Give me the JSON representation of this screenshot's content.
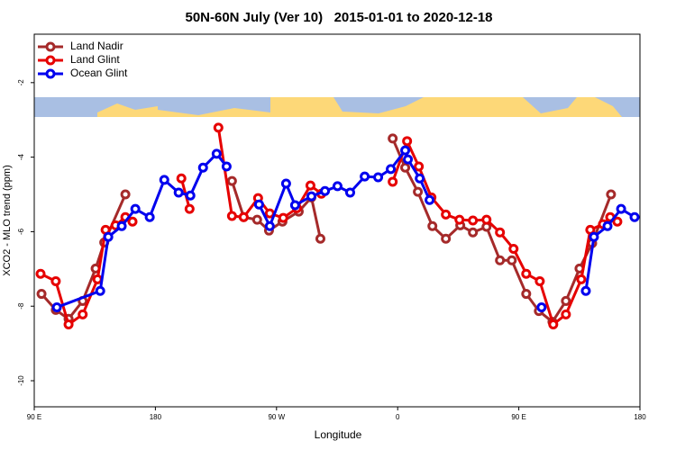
{
  "chart_data": {
    "type": "line",
    "title": "50N-60N July (Ver 10)   2015-01-01 to 2020-12-18",
    "x_label": "Longitude",
    "y_label": "XCO2 - MLO trend (ppm)",
    "xlim": [
      90,
      540
    ],
    "xticks": [
      {
        "value": 90,
        "label": "90 E"
      },
      {
        "value": 180,
        "label": "180"
      },
      {
        "value": 270,
        "label": "90 W"
      },
      {
        "value": 360,
        "label": "0"
      },
      {
        "value": 450,
        "label": "90 E"
      },
      {
        "value": 540,
        "label": "180"
      }
    ],
    "ylim": [
      -10.7,
      -0.7
    ],
    "yticks": [
      -2,
      -4,
      -6,
      -8,
      -10
    ],
    "legend": "top-left",
    "series": [
      {
        "name": "Land Nadir",
        "color": "#a52a2a",
        "x": [
          95.4,
          106,
          115.5,
          126,
          135.6,
          142,
          157.7,
          null,
          236.9,
          245.6,
          255.6,
          264.4,
          274.4,
          286.5,
          295.9,
          302.6,
          null,
          356.3,
          365.6,
          375,
          385.8,
          395.8,
          406.5,
          415.9,
          426,
          436,
          444.8,
          455.5,
          464.9,
          475,
          485,
          495.1,
          504.5,
          518.5
        ],
        "values": [
          -7.67,
          -8.1,
          -8.34,
          -7.86,
          -6.99,
          -6.29,
          -5.0,
          null,
          -4.64,
          -5.61,
          -5.68,
          -5.97,
          -5.73,
          -5.46,
          -5.08,
          -6.19,
          null,
          -3.5,
          -4.28,
          -4.93,
          -5.85,
          -6.19,
          -5.83,
          -6.02,
          -5.87,
          -6.77,
          -6.77,
          -7.67,
          -8.13,
          -8.42,
          -7.86,
          -6.99,
          -6.31,
          -5.0
        ]
      },
      {
        "name": "Land Glint",
        "color": "#e60000",
        "x": [
          94.7,
          106,
          115.5,
          126,
          137,
          143,
          150.4,
          157.7,
          163,
          null,
          199.3,
          205.4,
          null,
          226.8,
          236.9,
          245.6,
          256.3,
          265,
          275,
          285.2,
          295.2,
          303.3,
          null,
          356.3,
          367,
          375.7,
          385.1,
          395.8,
          405.9,
          415.9,
          426,
          436,
          446.1,
          455.5,
          465.6,
          475.6,
          485,
          496.4,
          503.1,
          512.5,
          517.9,
          523.2
        ],
        "values": [
          -7.13,
          -7.33,
          -8.49,
          -8.22,
          -7.28,
          -5.95,
          -5.83,
          -5.61,
          -5.73,
          null,
          -4.57,
          -5.39,
          null,
          -3.21,
          -5.58,
          -5.61,
          -5.1,
          -5.51,
          -5.63,
          -5.37,
          -4.76,
          -4.98,
          null,
          -4.66,
          -3.57,
          -4.25,
          -5.08,
          -5.54,
          -5.68,
          -5.7,
          -5.68,
          -6.02,
          -6.46,
          -7.13,
          -7.33,
          -8.49,
          -8.22,
          -7.28,
          -5.95,
          -5.8,
          -5.61,
          -5.73
        ]
      },
      {
        "name": "Ocean Glint",
        "color": "#0000ee",
        "x": [
          106.8,
          139,
          145,
          155,
          165.1,
          175.8,
          186.6,
          197.3,
          206,
          215.4,
          225.5,
          232.9,
          null,
          257,
          265,
          277.1,
          283.8,
          295.9,
          306,
          315.3,
          324.7,
          335.5,
          345.5,
          354.9,
          365.6,
          367.6,
          376.4,
          383.7,
          null,
          466.9,
          null,
          499.8,
          505.8,
          515.9,
          526,
          536
        ],
        "values": [
          -8.03,
          -7.59,
          -6.14,
          -5.85,
          -5.39,
          -5.61,
          -4.61,
          -4.95,
          -5.03,
          -4.28,
          -3.91,
          -4.25,
          null,
          -5.27,
          -5.85,
          -4.71,
          -5.29,
          -5.05,
          -4.91,
          -4.78,
          -4.95,
          -4.52,
          -4.54,
          -4.32,
          -3.82,
          -4.06,
          -4.57,
          -5.15,
          null,
          -8.03,
          null,
          -7.59,
          -6.14,
          -5.85,
          -5.39,
          -5.61
        ]
      }
    ]
  }
}
